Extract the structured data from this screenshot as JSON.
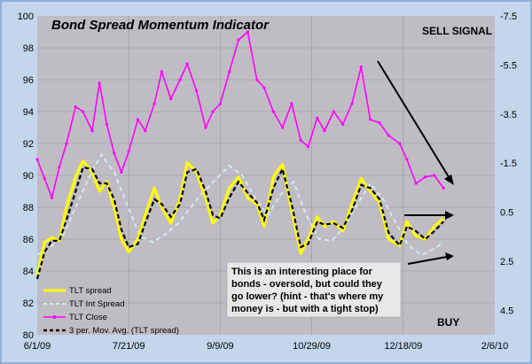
{
  "chart_data": {
    "type": "line",
    "title": "Bond Spread Momentum Indicator",
    "x_ticks": [
      "6/1/09",
      "7/21/09",
      "9/9/09",
      "10/29/09",
      "12/18/09",
      "2/6/10"
    ],
    "y_left": {
      "ticks": [
        "80",
        "82",
        "84",
        "86",
        "88",
        "90",
        "92",
        "94",
        "96",
        "98",
        "100"
      ],
      "range": [
        80,
        100
      ]
    },
    "y_right": {
      "ticks": [
        "-7.5",
        "-5.5",
        "-3.5",
        "-1.5",
        "0.5",
        "2.5",
        "4.5"
      ],
      "range": [
        -7.5,
        5.5
      ],
      "inverted": true
    },
    "annotations": {
      "sell": "SELL SIGNAL",
      "buy": "BUY",
      "note": [
        "This is an interesting place for",
        "bonds - oversold, but could they",
        "go lower?  (hint - that's where my",
        "money is - but with a tight stop)"
      ]
    },
    "legend": {
      "tlt_spread": "TLT spread",
      "tlt_int_spread": "TLT Int Spread",
      "tlt_close": "TLT Close",
      "mov_avg": "3 per. Mov. Avg. (TLT spread)"
    },
    "colors": {
      "tlt_close": "#ff00ff",
      "tlt_spread": "#ffff00",
      "tlt_int_spread": "#d0ecf4",
      "mov_avg": "#000000",
      "plot_bg": "#c0bcc4"
    },
    "series": {
      "tlt_close": {
        "x": [
          "2009-06-01",
          "2009-06-05",
          "2009-06-09",
          "2009-06-13",
          "2009-06-17",
          "2009-06-22",
          "2009-06-26",
          "2009-07-01",
          "2009-07-05",
          "2009-07-09",
          "2009-07-13",
          "2009-07-17",
          "2009-07-21",
          "2009-07-26",
          "2009-07-30",
          "2009-08-04",
          "2009-08-08",
          "2009-08-13",
          "2009-08-18",
          "2009-08-22",
          "2009-08-27",
          "2009-09-01",
          "2009-09-05",
          "2009-09-09",
          "2009-09-14",
          "2009-09-19",
          "2009-09-24",
          "2009-09-29",
          "2009-10-03",
          "2009-10-08",
          "2009-10-13",
          "2009-10-18",
          "2009-10-23",
          "2009-10-27",
          "2009-11-01",
          "2009-11-05",
          "2009-11-10",
          "2009-11-15",
          "2009-11-20",
          "2009-11-25",
          "2009-11-30",
          "2009-12-05",
          "2009-12-10",
          "2009-12-16",
          "2009-12-20",
          "2009-12-25",
          "2009-12-30",
          "2010-01-04",
          "2010-01-09"
        ],
        "y": [
          91.0,
          89.8,
          88.6,
          90.5,
          92.0,
          94.3,
          94.0,
          92.8,
          95.8,
          93.2,
          91.4,
          90.2,
          91.5,
          93.5,
          92.8,
          94.5,
          96.5,
          94.8,
          96.0,
          97.0,
          95.3,
          93.0,
          94.0,
          94.5,
          96.5,
          98.5,
          99.0,
          96.0,
          95.5,
          94.0,
          93.0,
          94.5,
          92.2,
          91.8,
          93.6,
          92.8,
          94.0,
          93.2,
          94.5,
          96.8,
          93.5,
          93.3,
          92.5,
          92.0,
          91.0,
          89.5,
          89.9,
          90.0,
          89.2
        ]
      },
      "tlt_spread": {
        "x": [
          "2009-06-01",
          "2009-06-05",
          "2009-06-09",
          "2009-06-13",
          "2009-06-17",
          "2009-06-22",
          "2009-06-26",
          "2009-07-01",
          "2009-07-05",
          "2009-07-09",
          "2009-07-13",
          "2009-07-17",
          "2009-07-21",
          "2009-07-26",
          "2009-07-30",
          "2009-08-04",
          "2009-08-08",
          "2009-08-13",
          "2009-08-18",
          "2009-08-22",
          "2009-08-27",
          "2009-09-01",
          "2009-09-05",
          "2009-09-09",
          "2009-09-14",
          "2009-09-19",
          "2009-09-24",
          "2009-09-29",
          "2009-10-03",
          "2009-10-08",
          "2009-10-13",
          "2009-10-18",
          "2009-10-23",
          "2009-10-27",
          "2009-11-01",
          "2009-11-05",
          "2009-11-10",
          "2009-11-15",
          "2009-11-20",
          "2009-11-25",
          "2009-11-30",
          "2009-12-05",
          "2009-12-10",
          "2009-12-16",
          "2009-12-20",
          "2009-12-25",
          "2009-12-30",
          "2010-01-04",
          "2010-01-09"
        ],
        "y": [
          83.8,
          85.8,
          86.1,
          85.9,
          88.0,
          89.9,
          90.9,
          90.2,
          89.0,
          89.6,
          88.0,
          86.0,
          85.2,
          86.0,
          87.5,
          89.2,
          88.0,
          87.0,
          88.5,
          90.8,
          90.2,
          88.6,
          87.0,
          87.5,
          89.2,
          89.9,
          88.6,
          88.2,
          86.8,
          89.9,
          90.7,
          87.8,
          85.1,
          86.0,
          87.4,
          86.8,
          87.1,
          86.5,
          88.2,
          89.8,
          89.0,
          88.3,
          86.0,
          85.6,
          87.1,
          86.2,
          86.0,
          86.8,
          87.3
        ]
      },
      "mov_avg": {
        "x": [
          "2009-06-01",
          "2009-06-05",
          "2009-06-09",
          "2009-06-13",
          "2009-06-17",
          "2009-06-22",
          "2009-06-26",
          "2009-07-01",
          "2009-07-05",
          "2009-07-09",
          "2009-07-13",
          "2009-07-17",
          "2009-07-21",
          "2009-07-26",
          "2009-07-30",
          "2009-08-04",
          "2009-08-08",
          "2009-08-13",
          "2009-08-18",
          "2009-08-22",
          "2009-08-27",
          "2009-09-01",
          "2009-09-05",
          "2009-09-09",
          "2009-09-14",
          "2009-09-19",
          "2009-09-24",
          "2009-09-29",
          "2009-10-03",
          "2009-10-08",
          "2009-10-13",
          "2009-10-18",
          "2009-10-23",
          "2009-10-27",
          "2009-11-01",
          "2009-11-05",
          "2009-11-10",
          "2009-11-15",
          "2009-11-20",
          "2009-11-25",
          "2009-11-30",
          "2009-12-05",
          "2009-12-10",
          "2009-12-16",
          "2009-12-20",
          "2009-12-25",
          "2009-12-30",
          "2010-01-04",
          "2010-01-09"
        ],
        "y": [
          83.5,
          85.2,
          85.9,
          85.9,
          87.2,
          89.0,
          90.5,
          90.4,
          89.5,
          89.5,
          88.5,
          86.6,
          85.5,
          85.7,
          87.0,
          88.5,
          88.2,
          87.4,
          88.2,
          90.2,
          90.4,
          89.0,
          87.5,
          87.3,
          88.6,
          89.6,
          88.9,
          88.3,
          87.2,
          89.2,
          90.4,
          88.2,
          85.5,
          85.7,
          87.1,
          86.9,
          87.0,
          86.7,
          87.8,
          89.4,
          89.2,
          88.5,
          86.4,
          85.6,
          86.8,
          86.5,
          86.0,
          86.5,
          87.1
        ]
      },
      "tlt_int_spread": {
        "x": [
          "2009-06-01",
          "2009-06-08",
          "2009-06-15",
          "2009-06-22",
          "2009-06-29",
          "2009-07-06",
          "2009-07-13",
          "2009-07-20",
          "2009-07-27",
          "2009-08-03",
          "2009-08-10",
          "2009-08-17",
          "2009-08-24",
          "2009-08-31",
          "2009-09-07",
          "2009-09-14",
          "2009-09-21",
          "2009-09-28",
          "2009-10-05",
          "2009-10-12",
          "2009-10-19",
          "2009-10-26",
          "2009-11-02",
          "2009-11-09",
          "2009-11-16",
          "2009-11-23",
          "2009-11-30",
          "2009-12-07",
          "2009-12-14",
          "2009-12-21",
          "2009-12-28",
          "2010-01-04",
          "2010-01-09"
        ],
        "y": [
          85.0,
          85.5,
          86.2,
          88.0,
          89.8,
          91.3,
          90.2,
          88.2,
          86.2,
          85.8,
          86.3,
          87.0,
          88.0,
          89.0,
          89.8,
          90.6,
          90.0,
          88.6,
          87.5,
          88.8,
          89.6,
          87.5,
          86.0,
          85.9,
          86.8,
          88.2,
          89.5,
          88.5,
          87.0,
          85.6,
          85.0,
          85.4,
          85.8
        ]
      }
    }
  }
}
